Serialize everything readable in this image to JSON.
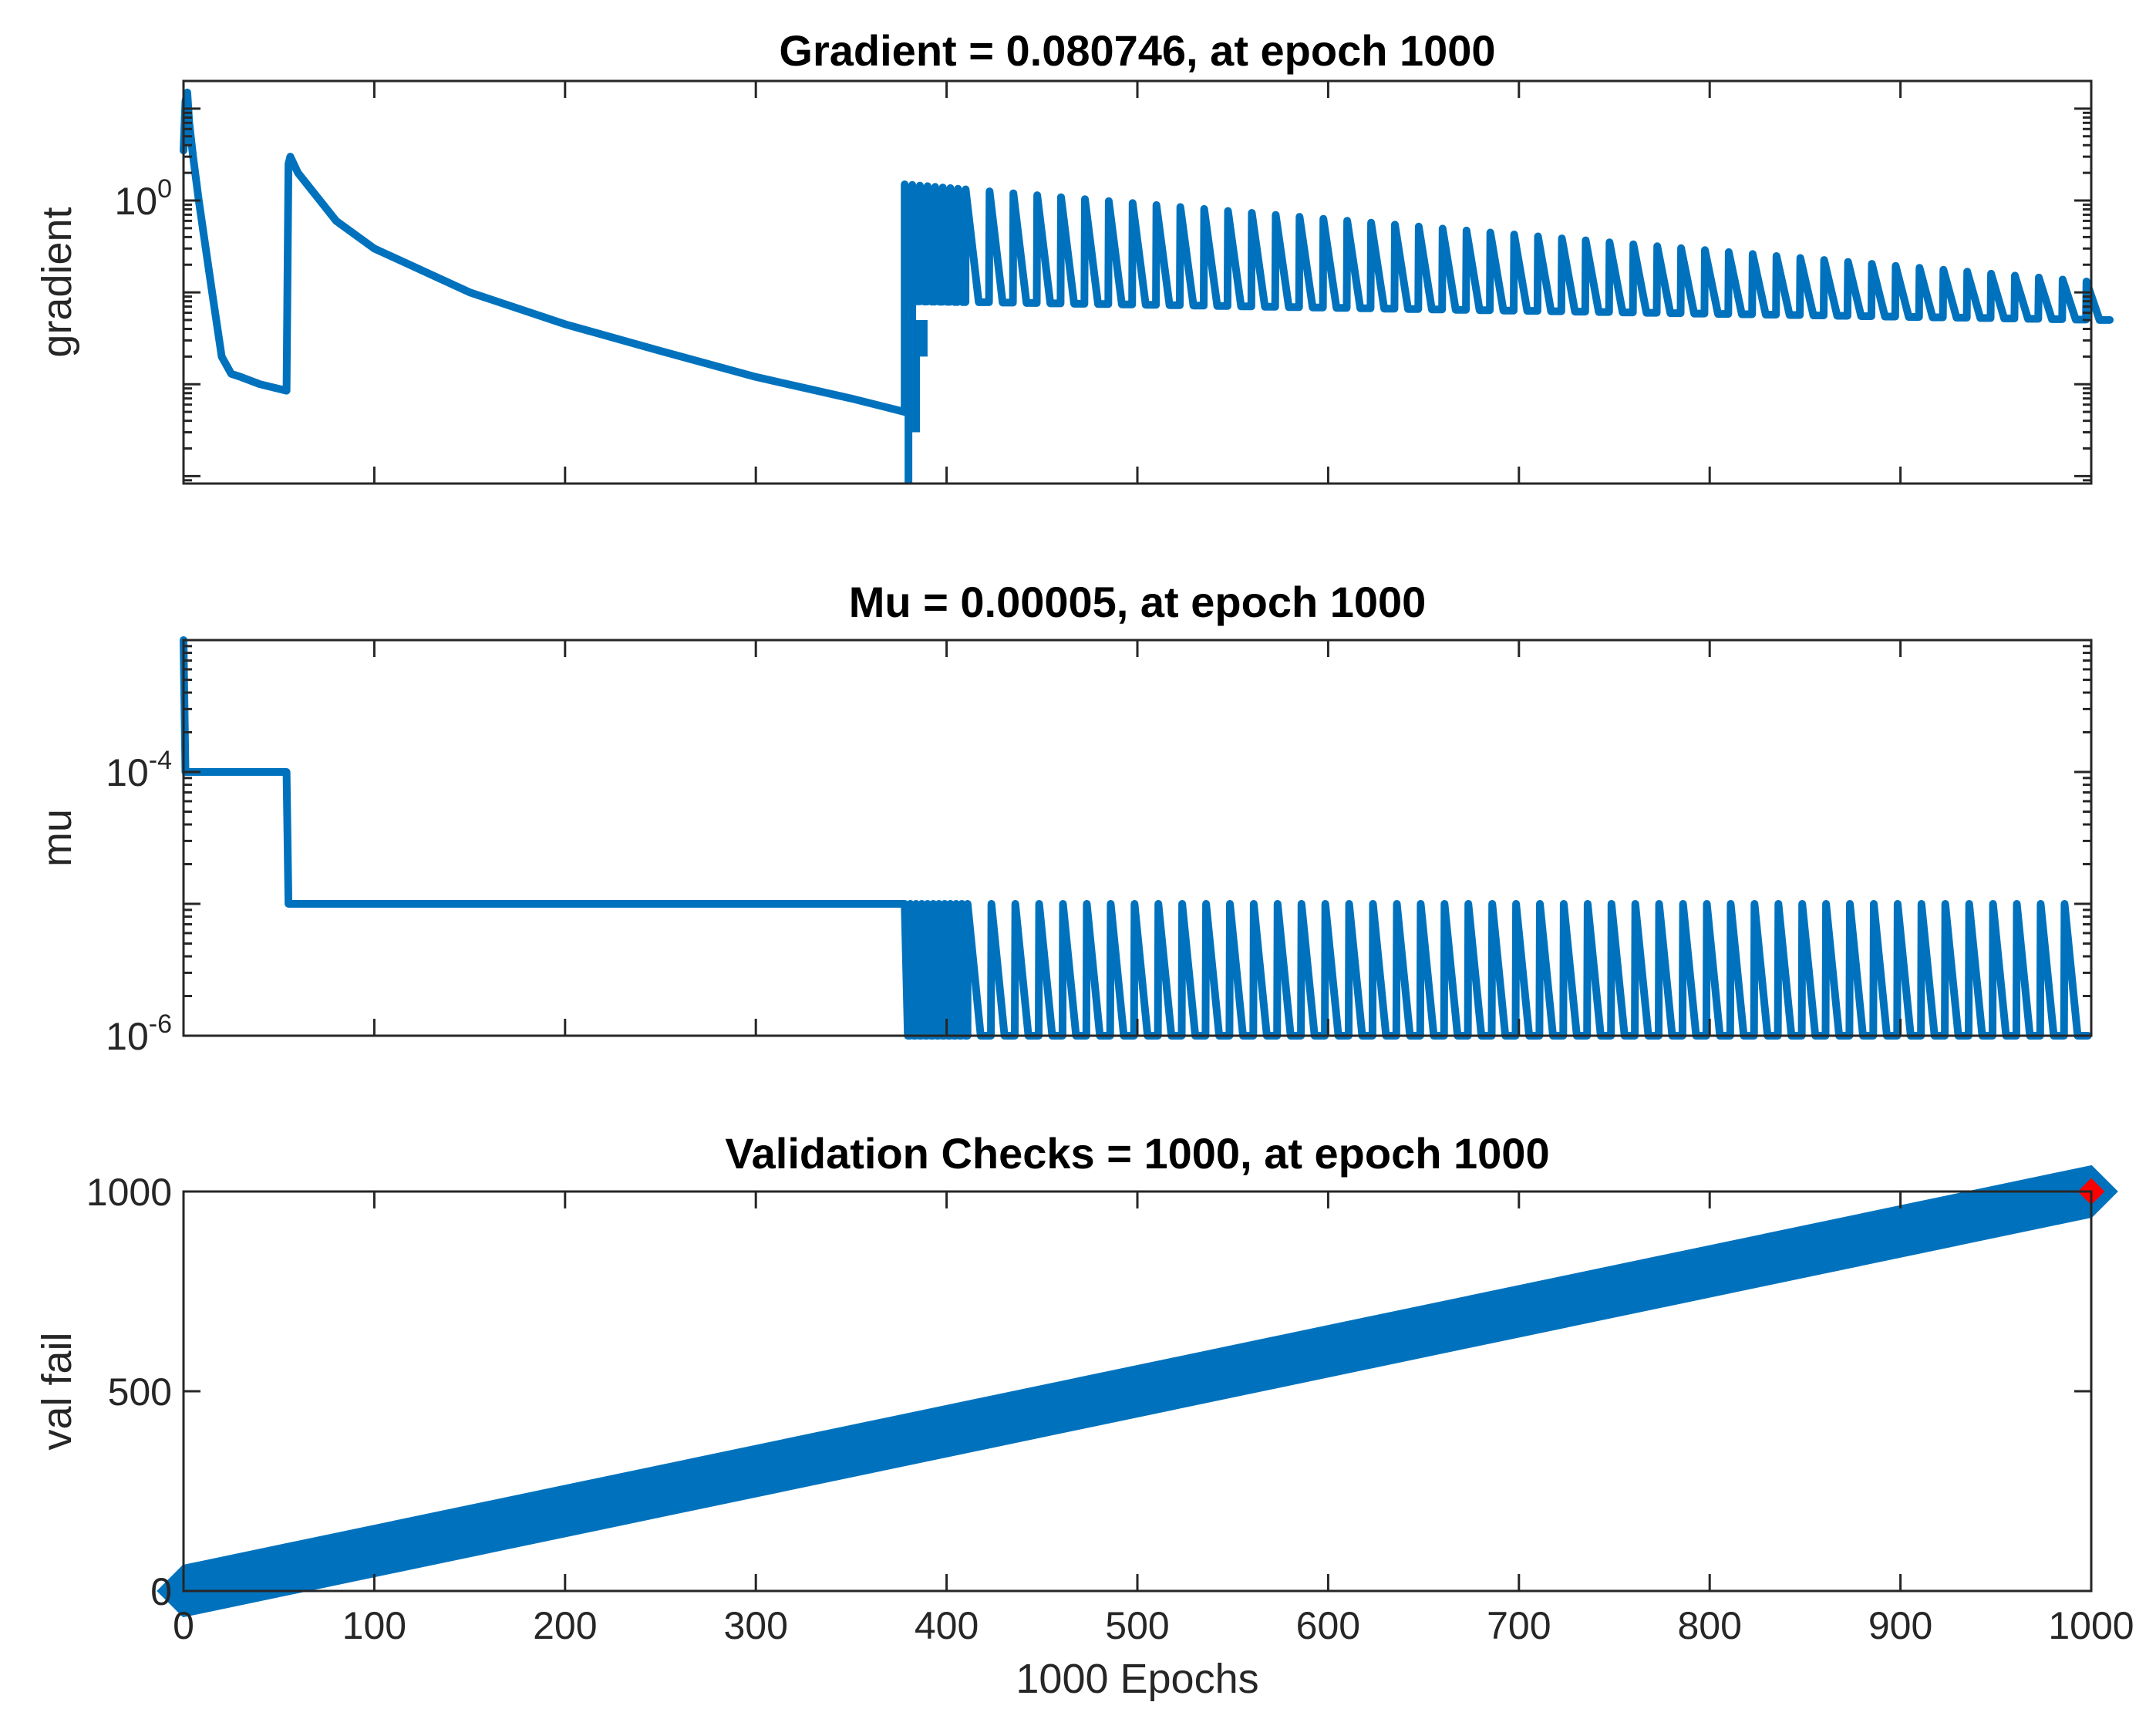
{
  "figure": {
    "line_color": "#0072BD",
    "marker_color": "#FF0000"
  },
  "chart_data": [
    {
      "type": "line",
      "name": "gradient-panel",
      "title": "Gradient = 0.080746, at epoch 1000",
      "xlabel": "",
      "ylabel": "gradient",
      "yscale": "log",
      "ylim": [
        0.00083,
        20
      ],
      "xlim": [
        0,
        1000
      ],
      "y_tick_labels": [
        {
          "value": 1,
          "base": "10",
          "exp": "0"
        }
      ],
      "x_tick_values": [
        0,
        100,
        200,
        300,
        400,
        500,
        600,
        700,
        800,
        900,
        1000
      ],
      "show_x_tick_labels": false,
      "grid": false,
      "series": [
        {
          "style": "line",
          "points": [
            [
              0,
              3.5
            ],
            [
              1,
              12
            ],
            [
              2,
              15
            ],
            [
              3,
              7
            ],
            [
              5,
              3
            ],
            [
              8,
              1
            ],
            [
              15,
              0.1
            ],
            [
              20,
              0.02
            ],
            [
              25,
              0.013
            ],
            [
              30,
              0.012
            ],
            [
              40,
              0.01
            ],
            [
              54,
              0.0085
            ],
            [
              55,
              2.5
            ],
            [
              56,
              3.0
            ],
            [
              60,
              2.0
            ],
            [
              80,
              0.6
            ],
            [
              100,
              0.3
            ],
            [
              150,
              0.1
            ],
            [
              200,
              0.045
            ],
            [
              250,
              0.023
            ],
            [
              300,
              0.012
            ],
            [
              350,
              0.007
            ],
            [
              378,
              0.005
            ]
          ],
          "periodic": {
            "start": 378,
            "end": 1000,
            "period": 12.5,
            "dense_until": 410,
            "dense_period": 4,
            "low_start": 0.08,
            "low_end": 0.05,
            "high_start": 1.5,
            "high_end": 0.13
          },
          "spikes": [
            [
              380,
              0.00085
            ],
            [
              382,
              0.6
            ],
            [
              384,
              0.003
            ],
            [
              388,
              0.02
            ]
          ]
        }
      ]
    },
    {
      "type": "line",
      "name": "mu-panel",
      "title": "Mu = 0.00005, at epoch 1000",
      "xlabel": "",
      "ylabel": "mu",
      "yscale": "log",
      "ylim": [
        1e-06,
        0.001
      ],
      "xlim": [
        0,
        1000
      ],
      "y_tick_labels": [
        {
          "value": 0.0001,
          "base": "10",
          "exp": "-4"
        },
        {
          "value": 1e-06,
          "base": "10",
          "exp": "-6"
        }
      ],
      "x_tick_values": [
        0,
        100,
        200,
        300,
        400,
        500,
        600,
        700,
        800,
        900,
        1000
      ],
      "show_x_tick_labels": false,
      "grid": false,
      "series": [
        {
          "style": "line",
          "points": [
            [
              0,
              0.001
            ],
            [
              1,
              0.0001
            ],
            [
              54,
              0.0001
            ],
            [
              55,
              1e-05
            ],
            [
              378,
              1e-05
            ]
          ],
          "periodic": {
            "start": 378,
            "end": 990,
            "period": 12.5,
            "dense_until": 410,
            "dense_period": 3,
            "low": 1e-06,
            "high": 1e-05
          }
        }
      ]
    },
    {
      "type": "line",
      "name": "val-fail-panel",
      "title": "Validation Checks = 1000, at epoch 1000",
      "xlabel": "1000 Epochs",
      "ylabel": "val fail",
      "yscale": "linear",
      "ylim": [
        0,
        1000
      ],
      "xlim": [
        0,
        1000
      ],
      "y_tick_labels": [
        {
          "value": 0,
          "text": "0"
        },
        {
          "value": 500,
          "text": "500"
        },
        {
          "value": 1000,
          "text": "1000"
        }
      ],
      "x_tick_values": [
        0,
        100,
        200,
        300,
        400,
        500,
        600,
        700,
        800,
        900,
        1000
      ],
      "x_tick_labels": [
        "0",
        "100",
        "200",
        "300",
        "400",
        "500",
        "600",
        "700",
        "800",
        "900",
        "1000"
      ],
      "show_x_tick_labels": true,
      "grid": false,
      "series": [
        {
          "style": "diamond-markers",
          "x": [
            0,
            1000
          ],
          "y": [
            0,
            1000
          ]
        }
      ],
      "highlight": {
        "x": 1000,
        "y": 1000,
        "marker": "diamond"
      }
    }
  ]
}
